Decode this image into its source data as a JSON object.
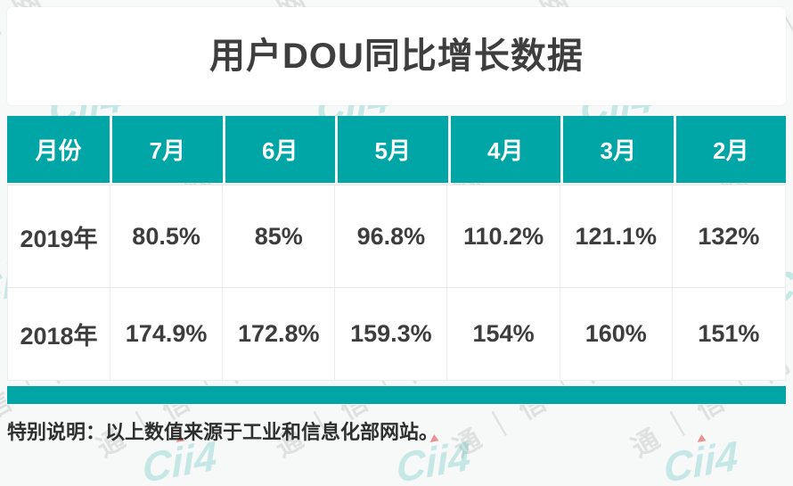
{
  "title": "用户DOU同比增长数据",
  "table": {
    "columns": [
      "月份",
      "7月",
      "6月",
      "5月",
      "4月",
      "3月",
      "2月"
    ],
    "rows": [
      {
        "label": "2019年",
        "values": [
          "80.5%",
          "85%",
          "96.8%",
          "110.2%",
          "121.1%",
          "132%"
        ]
      },
      {
        "label": "2018年",
        "values": [
          "174.9%",
          "172.8%",
          "159.3%",
          "154%",
          "160%",
          "151%"
        ]
      }
    ]
  },
  "footer": {
    "note": "特别说明：以上数值来源于工业和信息化部网站。"
  },
  "watermark": {
    "text": "通｜信｜网",
    "logo": "Cii4"
  },
  "colors": {
    "accent": "#00a6a6",
    "header_text": "#ffffff",
    "body_text": "#3d3d3d",
    "title_text": "#3e3e3e",
    "page_background": "#f7f8f8",
    "card_background": "#ffffff"
  },
  "chart_data": {
    "type": "table",
    "title": "用户DOU同比增长数据",
    "categories": [
      "7月",
      "6月",
      "5月",
      "4月",
      "3月",
      "2月"
    ],
    "series": [
      {
        "name": "2019年",
        "values": [
          80.5,
          85,
          96.8,
          110.2,
          121.1,
          132
        ]
      },
      {
        "name": "2018年",
        "values": [
          174.9,
          172.8,
          159.3,
          154,
          160,
          151
        ]
      }
    ],
    "unit": "%",
    "note": "特别说明：以上数值来源于工业和信息化部网站。"
  }
}
